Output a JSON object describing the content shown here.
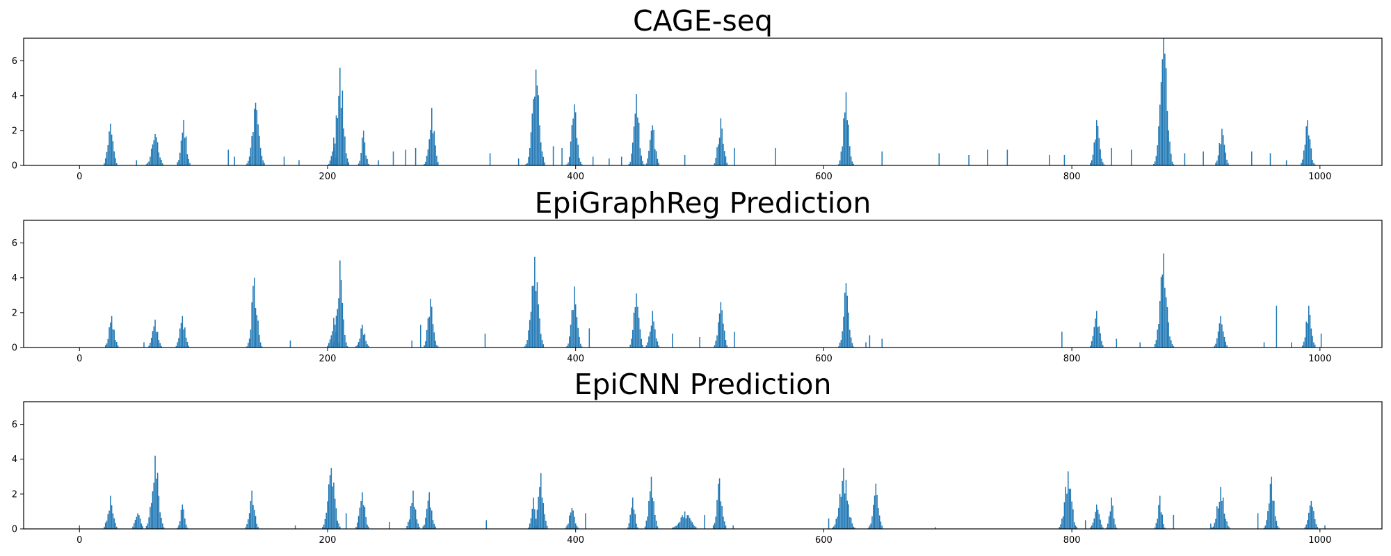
{
  "chart_data": [
    {
      "type": "bar",
      "title": "CAGE-seq",
      "xlabel": "",
      "ylabel": "",
      "xlim": [
        -45,
        1050
      ],
      "ylim": [
        0,
        7.3
      ],
      "xticks": [
        0,
        200,
        400,
        600,
        800,
        1000
      ],
      "yticks": [
        0,
        2,
        4,
        6
      ],
      "color": "#1f77b4",
      "grid": false,
      "peaks": [
        {
          "x": 25,
          "h": 2.4,
          "w": 4
        },
        {
          "x": 61,
          "h": 1.8,
          "w": 5
        },
        {
          "x": 84,
          "h": 2.6,
          "w": 4
        },
        {
          "x": 142,
          "h": 3.6,
          "w": 5
        },
        {
          "x": 210,
          "h": 5.6,
          "w": 5
        },
        {
          "x": 205,
          "h": 1.6,
          "w": 3
        },
        {
          "x": 229,
          "h": 2.0,
          "w": 3
        },
        {
          "x": 284,
          "h": 3.3,
          "w": 4
        },
        {
          "x": 368,
          "h": 5.5,
          "w": 5
        },
        {
          "x": 399,
          "h": 3.5,
          "w": 4
        },
        {
          "x": 449,
          "h": 4.1,
          "w": 4
        },
        {
          "x": 462,
          "h": 2.3,
          "w": 4
        },
        {
          "x": 517,
          "h": 2.7,
          "w": 4
        },
        {
          "x": 618,
          "h": 4.2,
          "w": 4
        },
        {
          "x": 820,
          "h": 2.6,
          "w": 4
        },
        {
          "x": 874,
          "h": 7.3,
          "w": 5
        },
        {
          "x": 921,
          "h": 2.1,
          "w": 4
        },
        {
          "x": 990,
          "h": 2.6,
          "w": 4
        }
      ],
      "spikes": [
        {
          "x": 46,
          "h": 0.3
        },
        {
          "x": 120,
          "h": 0.9
        },
        {
          "x": 125,
          "h": 0.5
        },
        {
          "x": 165,
          "h": 0.5
        },
        {
          "x": 177,
          "h": 0.3
        },
        {
          "x": 241,
          "h": 0.3
        },
        {
          "x": 253,
          "h": 0.8
        },
        {
          "x": 263,
          "h": 0.9
        },
        {
          "x": 271,
          "h": 1.0
        },
        {
          "x": 331,
          "h": 0.7
        },
        {
          "x": 354,
          "h": 0.4
        },
        {
          "x": 382,
          "h": 1.1
        },
        {
          "x": 389,
          "h": 1.0
        },
        {
          "x": 414,
          "h": 0.5
        },
        {
          "x": 427,
          "h": 0.4
        },
        {
          "x": 437,
          "h": 0.5
        },
        {
          "x": 488,
          "h": 0.6
        },
        {
          "x": 528,
          "h": 1.0
        },
        {
          "x": 561,
          "h": 1.0
        },
        {
          "x": 647,
          "h": 0.8
        },
        {
          "x": 693,
          "h": 0.7
        },
        {
          "x": 717,
          "h": 0.6
        },
        {
          "x": 732,
          "h": 0.9
        },
        {
          "x": 748,
          "h": 0.9
        },
        {
          "x": 782,
          "h": 0.6
        },
        {
          "x": 794,
          "h": 0.6
        },
        {
          "x": 832,
          "h": 1.0
        },
        {
          "x": 848,
          "h": 0.9
        },
        {
          "x": 891,
          "h": 0.7
        },
        {
          "x": 906,
          "h": 0.8
        },
        {
          "x": 945,
          "h": 0.8
        },
        {
          "x": 960,
          "h": 0.7
        },
        {
          "x": 973,
          "h": 0.3
        }
      ]
    },
    {
      "type": "bar",
      "title": "EpiGraphReg Prediction",
      "xlabel": "",
      "ylabel": "",
      "xlim": [
        -45,
        1050
      ],
      "ylim": [
        0,
        7.3
      ],
      "xticks": [
        0,
        200,
        400,
        600,
        800,
        1000
      ],
      "yticks": [
        0,
        2,
        4,
        6
      ],
      "color": "#1f77b4",
      "grid": false,
      "peaks": [
        {
          "x": 26,
          "h": 1.8,
          "w": 4
        },
        {
          "x": 61,
          "h": 1.6,
          "w": 4
        },
        {
          "x": 83,
          "h": 1.8,
          "w": 4
        },
        {
          "x": 141,
          "h": 4.0,
          "w": 4
        },
        {
          "x": 205,
          "h": 1.7,
          "w": 4
        },
        {
          "x": 210,
          "h": 5.0,
          "w": 4
        },
        {
          "x": 228,
          "h": 1.3,
          "w": 4
        },
        {
          "x": 283,
          "h": 2.8,
          "w": 4
        },
        {
          "x": 367,
          "h": 5.2,
          "w": 5
        },
        {
          "x": 399,
          "h": 3.5,
          "w": 4
        },
        {
          "x": 449,
          "h": 3.1,
          "w": 4
        },
        {
          "x": 462,
          "h": 2.1,
          "w": 4
        },
        {
          "x": 517,
          "h": 2.6,
          "w": 4
        },
        {
          "x": 618,
          "h": 3.7,
          "w": 4
        },
        {
          "x": 820,
          "h": 2.1,
          "w": 4
        },
        {
          "x": 874,
          "h": 5.4,
          "w": 5
        },
        {
          "x": 920,
          "h": 1.8,
          "w": 4
        },
        {
          "x": 991,
          "h": 2.4,
          "w": 4
        }
      ],
      "spikes": [
        {
          "x": 52,
          "h": 0.3
        },
        {
          "x": 170,
          "h": 0.4
        },
        {
          "x": 268,
          "h": 0.4
        },
        {
          "x": 275,
          "h": 1.3
        },
        {
          "x": 327,
          "h": 0.8
        },
        {
          "x": 411,
          "h": 1.1
        },
        {
          "x": 478,
          "h": 0.8
        },
        {
          "x": 500,
          "h": 0.6
        },
        {
          "x": 528,
          "h": 0.9
        },
        {
          "x": 637,
          "h": 0.7
        },
        {
          "x": 634,
          "h": 0.3
        },
        {
          "x": 647,
          "h": 0.5
        },
        {
          "x": 792,
          "h": 0.9
        },
        {
          "x": 836,
          "h": 0.5
        },
        {
          "x": 855,
          "h": 0.3
        },
        {
          "x": 955,
          "h": 0.3
        },
        {
          "x": 965,
          "h": 2.4
        },
        {
          "x": 977,
          "h": 0.3
        },
        {
          "x": 1001,
          "h": 0.8
        }
      ]
    },
    {
      "type": "bar",
      "title": "EpiCNN Prediction",
      "xlabel": "",
      "ylabel": "",
      "xlim": [
        -45,
        1050
      ],
      "ylim": [
        0,
        7.3
      ],
      "xticks": [
        0,
        200,
        400,
        600,
        800,
        1000
      ],
      "yticks": [
        0,
        2,
        4,
        6
      ],
      "color": "#1f77b4",
      "grid": false,
      "peaks": [
        {
          "x": 25,
          "h": 1.9,
          "w": 4
        },
        {
          "x": 47,
          "h": 0.9,
          "w": 4
        },
        {
          "x": 61,
          "h": 4.2,
          "w": 5
        },
        {
          "x": 83,
          "h": 1.4,
          "w": 3
        },
        {
          "x": 139,
          "h": 2.2,
          "w": 4
        },
        {
          "x": 203,
          "h": 3.5,
          "w": 5
        },
        {
          "x": 228,
          "h": 2.1,
          "w": 4
        },
        {
          "x": 269,
          "h": 2.2,
          "w": 4
        },
        {
          "x": 282,
          "h": 2.1,
          "w": 4
        },
        {
          "x": 366,
          "h": 1.8,
          "w": 3
        },
        {
          "x": 372,
          "h": 3.2,
          "w": 4
        },
        {
          "x": 397,
          "h": 1.2,
          "w": 4
        },
        {
          "x": 446,
          "h": 1.8,
          "w": 3
        },
        {
          "x": 461,
          "h": 3.0,
          "w": 4
        },
        {
          "x": 488,
          "h": 1.0,
          "w": 8
        },
        {
          "x": 516,
          "h": 2.9,
          "w": 4
        },
        {
          "x": 616,
          "h": 3.5,
          "w": 6
        },
        {
          "x": 642,
          "h": 2.6,
          "w": 4
        },
        {
          "x": 797,
          "h": 3.3,
          "w": 5
        },
        {
          "x": 820,
          "h": 1.4,
          "w": 4
        },
        {
          "x": 832,
          "h": 1.8,
          "w": 3
        },
        {
          "x": 871,
          "h": 1.9,
          "w": 3
        },
        {
          "x": 920,
          "h": 2.4,
          "w": 5
        },
        {
          "x": 961,
          "h": 3.0,
          "w": 4
        },
        {
          "x": 993,
          "h": 1.6,
          "w": 4
        }
      ],
      "spikes": [
        {
          "x": 0,
          "h": 0.2
        },
        {
          "x": 174,
          "h": 0.2
        },
        {
          "x": 215,
          "h": 0.9
        },
        {
          "x": 250,
          "h": 0.4
        },
        {
          "x": 328,
          "h": 0.5
        },
        {
          "x": 408,
          "h": 0.9
        },
        {
          "x": 504,
          "h": 0.8
        },
        {
          "x": 527,
          "h": 0.2
        },
        {
          "x": 604,
          "h": 0.6
        },
        {
          "x": 690,
          "h": 0.1
        },
        {
          "x": 811,
          "h": 0.5
        },
        {
          "x": 882,
          "h": 0.8
        },
        {
          "x": 912,
          "h": 0.3
        },
        {
          "x": 950,
          "h": 0.9
        },
        {
          "x": 1004,
          "h": 0.2
        }
      ]
    }
  ]
}
